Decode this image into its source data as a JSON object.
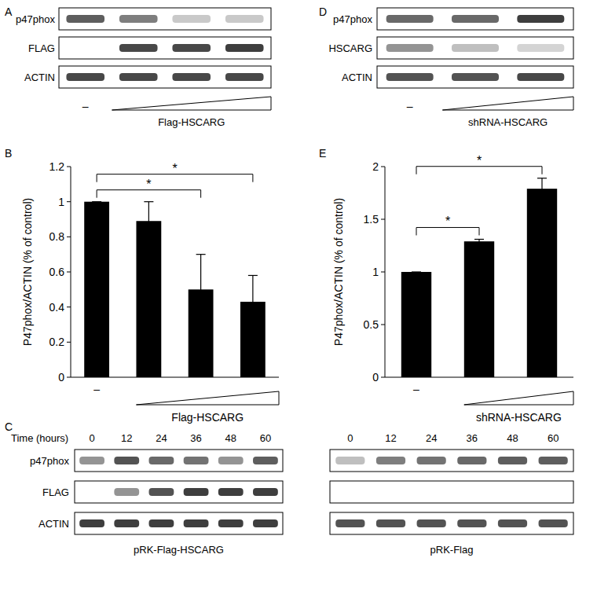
{
  "blots": [
    {
      "panel": "A",
      "first_lane": "–",
      "treatment": "Flag-HSCARG",
      "rows": [
        {
          "name": "p47phox",
          "bands": [
            0.75,
            0.6,
            0.25,
            0.25
          ]
        },
        {
          "name": "FLAG",
          "bands": [
            0,
            0.85,
            0.85,
            0.9
          ]
        },
        {
          "name": "ACTIN",
          "bands": [
            0.85,
            0.85,
            0.85,
            0.85
          ]
        }
      ]
    },
    {
      "panel": "D",
      "first_lane": "–",
      "treatment": "shRNA-HSCARG",
      "rows": [
        {
          "name": "p47phox",
          "bands": [
            0.7,
            0.7,
            0.9
          ]
        },
        {
          "name": "HSCARG",
          "bands": [
            0.5,
            0.3,
            0.2
          ]
        },
        {
          "name": "ACTIN",
          "bands": [
            0.8,
            0.8,
            0.85
          ]
        }
      ]
    },
    {
      "panel": "C",
      "time_label": "Time (hours)",
      "lanes": [
        "0",
        "12",
        "24",
        "36",
        "48",
        "60"
      ],
      "treatment": "pRK-Flag-HSCARG",
      "rows": [
        {
          "name": "p47phox",
          "bands": [
            0.5,
            0.8,
            0.7,
            0.65,
            0.5,
            0.75
          ]
        },
        {
          "name": "FLAG",
          "bands": [
            0,
            0.5,
            0.8,
            0.9,
            0.9,
            0.9
          ]
        },
        {
          "name": "ACTIN",
          "bands": [
            0.9,
            0.9,
            0.9,
            0.9,
            0.9,
            0.9
          ]
        }
      ]
    },
    {
      "lanes": [
        "0",
        "12",
        "24",
        "36",
        "48",
        "60"
      ],
      "treatment": "pRK-Flag",
      "rows": [
        {
          "bands": [
            0.3,
            0.6,
            0.65,
            0.7,
            0.75,
            0.75
          ]
        },
        {
          "bands": [
            0,
            0,
            0,
            0,
            0,
            0
          ]
        },
        {
          "bands": [
            0.8,
            0.8,
            0.8,
            0.8,
            0.8,
            0.8
          ]
        }
      ]
    }
  ],
  "chart_data": [
    {
      "type": "bar",
      "title": "B",
      "categories": [
        "–",
        null,
        null,
        null
      ],
      "values": [
        1,
        0.89,
        0.5,
        0.43
      ],
      "errors": [
        0,
        0.11,
        0.2,
        0.15
      ],
      "color": "#000000",
      "ylabel": "P47phox/ACTIN (% of control)",
      "xlabel": "Flag-HSCARG",
      "ylim": [
        0,
        1.2
      ],
      "yticks": [
        0,
        0.2,
        0.4,
        0.6,
        0.8,
        1,
        1.2
      ],
      "annotations": [
        {
          "from": 0,
          "to": 2,
          "text": "*"
        },
        {
          "from": 0,
          "to": 3,
          "text": "*"
        }
      ]
    },
    {
      "type": "bar",
      "title": "E",
      "categories": [
        "–",
        null,
        null
      ],
      "values": [
        1,
        1.29,
        1.79
      ],
      "errors": [
        0,
        0.02,
        0.1
      ],
      "color": "#000000",
      "ylabel": "P47phox/ACTIN (% of control)",
      "xlabel": "shRNA-HSCARG",
      "ylim": [
        0,
        2
      ],
      "yticks": [
        0,
        0.5,
        1,
        1.5,
        2
      ],
      "annotations": [
        {
          "from": 0,
          "to": 1,
          "text": "*"
        },
        {
          "from": 0,
          "to": 2,
          "text": "*"
        }
      ]
    }
  ]
}
